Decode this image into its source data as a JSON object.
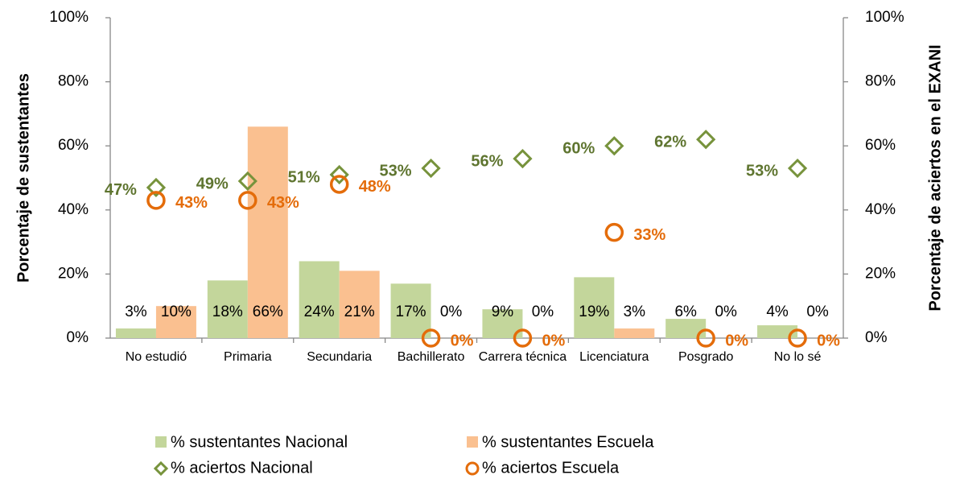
{
  "chart_data": {
    "type": "bar-line",
    "ylabel": "Porcentaje de sustentantes",
    "y2label": "Porcentaje de aciertos en el EXANI",
    "categories": [
      "No estudió",
      "Primaria",
      "Secundaria",
      "Bachillerato",
      "Carrera técnica",
      "Licenciatura",
      "Posgrado",
      "No lo sé"
    ],
    "ylim": [
      0,
      100
    ],
    "yticks": [
      {
        "value": 0,
        "label": "0%"
      },
      {
        "value": 20,
        "label": "20%"
      },
      {
        "value": 40,
        "label": "40%"
      },
      {
        "value": 60,
        "label": "60%"
      },
      {
        "value": 80,
        "label": "80%"
      },
      {
        "value": 100,
        "label": "100%"
      }
    ],
    "y2lim": [
      0,
      100
    ],
    "y2ticks": [
      {
        "value": 0,
        "label": "0%"
      },
      {
        "value": 20,
        "label": "20%"
      },
      {
        "value": 40,
        "label": "40%"
      },
      {
        "value": 60,
        "label": "60%"
      },
      {
        "value": 80,
        "label": "80%"
      },
      {
        "value": 100,
        "label": "100%"
      }
    ],
    "legend": "bottom",
    "series": [
      {
        "name": "% sustentantes Nacional",
        "type": "bar",
        "color": "#c3d69b",
        "values": [
          3,
          18,
          24,
          17,
          9,
          19,
          6,
          4
        ],
        "value_labels": [
          "3%",
          "18%",
          "24%",
          "17%",
          "9%",
          "19%",
          "6%",
          "4%"
        ]
      },
      {
        "name": "% sustentantes Escuela",
        "type": "bar",
        "color": "#fac090",
        "values": [
          10,
          66,
          21,
          0,
          0,
          3,
          0,
          0
        ],
        "value_labels": [
          "10%",
          "66%",
          "21%",
          "0%",
          "0%",
          "3%",
          "0%",
          "0%"
        ]
      },
      {
        "name": "% aciertos Nacional",
        "type": "diamond",
        "axis": "y2",
        "color": "#77933c",
        "label_color": "#5f7530",
        "values": [
          47,
          49,
          51,
          53,
          56,
          60,
          62,
          53
        ],
        "value_labels": [
          "47%",
          "49%",
          "51%",
          "53%",
          "56%",
          "60%",
          "62%",
          "53%"
        ]
      },
      {
        "name": "% aciertos Escuela",
        "type": "circle",
        "axis": "y2",
        "color": "#e46c0a",
        "label_color": "#e46c0a",
        "values": [
          43,
          43,
          48,
          0,
          0,
          33,
          0,
          0
        ],
        "value_labels": [
          "43%",
          "43%",
          "48%",
          "0%",
          "0%",
          "33%",
          "0%",
          "0%"
        ]
      }
    ]
  }
}
